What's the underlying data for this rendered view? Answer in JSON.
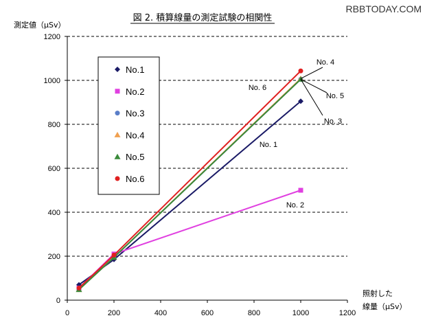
{
  "watermark": "RBBTODAY.COM",
  "chart_data": {
    "type": "line",
    "title": "図 2.  積算線量の測定試験の相関性",
    "ylabel": "測定値（μSv）",
    "xlabel_line1": "照射した",
    "xlabel_line2": "線量（μSv）",
    "xlim": [
      0,
      1200
    ],
    "ylim": [
      0,
      1200
    ],
    "xticks": [
      0,
      200,
      400,
      600,
      800,
      1000,
      1200
    ],
    "yticks": [
      0,
      200,
      400,
      600,
      800,
      1000,
      1200
    ],
    "x": [
      50,
      200,
      1000
    ],
    "grid": "dashed horizontal",
    "legend_position": "upper-left inside plot",
    "series": [
      {
        "name": "No.1",
        "marker": "diamond",
        "color": "#1a1a66",
        "values": [
          70,
          185,
          905
        ]
      },
      {
        "name": "No.2",
        "marker": "square",
        "color": "#e040e0",
        "values": [
          55,
          210,
          500
        ]
      },
      {
        "name": "No.3",
        "marker": "circle",
        "color": "#5a7ec8",
        "values": [
          48,
          195,
          1005
        ]
      },
      {
        "name": "No.4",
        "marker": "triangle",
        "color": "#f0a050",
        "values": [
          48,
          195,
          1008
        ]
      },
      {
        "name": "No.5",
        "marker": "triangle",
        "color": "#3a8a3a",
        "values": [
          48,
          195,
          1005
        ]
      },
      {
        "name": "No.6",
        "marker": "circle",
        "color": "#e02020",
        "values": [
          55,
          205,
          1043
        ]
      }
    ],
    "annotations": [
      {
        "text": "No. 4",
        "series": "No.4"
      },
      {
        "text": "No. 6",
        "series": "No.6"
      },
      {
        "text": "No. 5",
        "series": "No.5"
      },
      {
        "text": "No. 3",
        "series": "No.3"
      },
      {
        "text": "No. 1",
        "series": "No.1"
      },
      {
        "text": "No. 2",
        "series": "No.2"
      }
    ]
  }
}
